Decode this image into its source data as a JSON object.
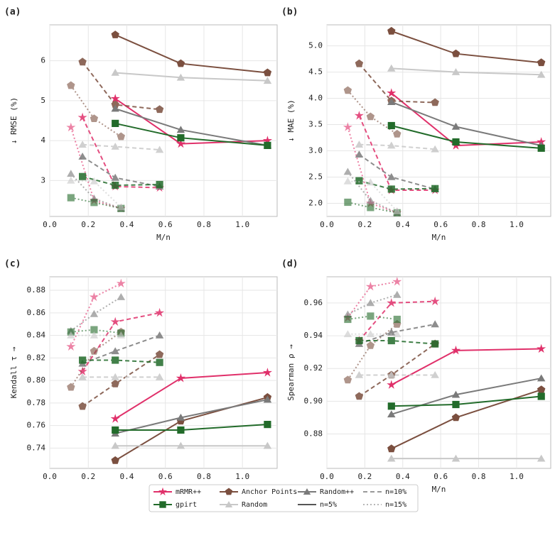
{
  "chart_data": [
    {
      "type": "line",
      "title": "(a)",
      "xlabel": "M/n",
      "ylabel": "↓ RMSE (%)",
      "grid": true,
      "xlim": [
        0,
        1.18
      ],
      "xticks": [
        {
          "value": 0,
          "label": "0.0"
        },
        0.2,
        0.4,
        0.6,
        0.8,
        {
          "value": 1,
          "label": "1.0"
        }
      ],
      "ylim": [
        2.1,
        6.9
      ],
      "yticks": [
        3,
        4,
        5,
        6
      ],
      "series": [
        {
          "method": "mRMR++",
          "style": "n=5%",
          "x": [
            0.34,
            0.68,
            1.13
          ],
          "values": [
            5.05,
            3.92,
            4.0
          ]
        },
        {
          "method": "mRMR++",
          "style": "n=10%",
          "x": [
            0.17,
            0.34,
            0.57
          ],
          "values": [
            4.58,
            2.85,
            2.82
          ]
        },
        {
          "method": "mRMR++",
          "style": "n=15%",
          "x": [
            0.11,
            0.23,
            0.37
          ],
          "values": [
            4.33,
            2.5,
            2.3
          ]
        },
        {
          "method": "Anchor Points",
          "style": "n=5%",
          "x": [
            0.34,
            0.68,
            1.13
          ],
          "values": [
            6.65,
            5.93,
            5.7
          ]
        },
        {
          "method": "Anchor Points",
          "style": "n=10%",
          "x": [
            0.17,
            0.34,
            0.57
          ],
          "values": [
            5.97,
            4.9,
            4.78
          ]
        },
        {
          "method": "Anchor Points",
          "style": "n=15%",
          "x": [
            0.11,
            0.23,
            0.37
          ],
          "values": [
            5.38,
            4.55,
            4.1
          ]
        },
        {
          "method": "Random++",
          "style": "n=5%",
          "x": [
            0.34,
            0.68,
            1.13
          ],
          "values": [
            4.8,
            4.27,
            3.88
          ]
        },
        {
          "method": "Random++",
          "style": "n=10%",
          "x": [
            0.17,
            0.34,
            0.57
          ],
          "values": [
            3.6,
            3.07,
            2.85
          ]
        },
        {
          "method": "Random++",
          "style": "n=15%",
          "x": [
            0.11,
            0.23,
            0.37
          ],
          "values": [
            3.17,
            2.55,
            2.3
          ]
        },
        {
          "method": "gpirt",
          "style": "n=5%",
          "x": [
            0.34,
            0.68,
            1.13
          ],
          "values": [
            4.43,
            4.07,
            3.88
          ]
        },
        {
          "method": "gpirt",
          "style": "n=10%",
          "x": [
            0.17,
            0.34,
            0.57
          ],
          "values": [
            3.1,
            2.88,
            2.9
          ]
        },
        {
          "method": "gpirt",
          "style": "n=15%",
          "x": [
            0.11,
            0.23,
            0.37
          ],
          "values": [
            2.57,
            2.45,
            2.3
          ]
        },
        {
          "method": "Random",
          "style": "n=5%",
          "x": [
            0.34,
            0.68,
            1.13
          ],
          "values": [
            5.7,
            5.58,
            5.5
          ]
        },
        {
          "method": "Random",
          "style": "n=10%",
          "x": [
            0.17,
            0.34,
            0.57
          ],
          "values": [
            3.9,
            3.85,
            3.77
          ]
        },
        {
          "method": "Random",
          "style": "n=15%",
          "x": [
            0.11,
            0.23,
            0.37
          ],
          "values": [
            3.0,
            2.98,
            2.33
          ]
        }
      ]
    },
    {
      "type": "line",
      "title": "(b)",
      "xlabel": "M/n",
      "ylabel": "↓ MAE (%)",
      "grid": true,
      "xlim": [
        0,
        1.18
      ],
      "xticks": [
        {
          "value": 0,
          "label": "0.0"
        },
        0.2,
        0.4,
        0.6,
        0.8,
        {
          "value": 1,
          "label": "1.0"
        }
      ],
      "ylim": [
        1.75,
        5.4
      ],
      "yticks": [
        {
          "value": 2,
          "label": "2.0"
        },
        2.5,
        {
          "value": 3,
          "label": "3.0"
        },
        3.5,
        {
          "value": 4,
          "label": "4.0"
        },
        4.5,
        {
          "value": 5,
          "label": "5.0"
        }
      ],
      "series": [
        {
          "method": "mRMR++",
          "style": "n=5%",
          "x": [
            0.34,
            0.68,
            1.13
          ],
          "values": [
            4.1,
            3.1,
            3.17
          ]
        },
        {
          "method": "mRMR++",
          "style": "n=10%",
          "x": [
            0.17,
            0.34,
            0.57
          ],
          "values": [
            3.67,
            2.25,
            2.25
          ]
        },
        {
          "method": "mRMR++",
          "style": "n=15%",
          "x": [
            0.11,
            0.23,
            0.37
          ],
          "values": [
            3.45,
            2.0,
            1.82
          ]
        },
        {
          "method": "Anchor Points",
          "style": "n=5%",
          "x": [
            0.34,
            0.68,
            1.13
          ],
          "values": [
            5.28,
            4.85,
            4.68
          ]
        },
        {
          "method": "Anchor Points",
          "style": "n=10%",
          "x": [
            0.17,
            0.34,
            0.57
          ],
          "values": [
            4.66,
            3.95,
            3.92
          ]
        },
        {
          "method": "Anchor Points",
          "style": "n=15%",
          "x": [
            0.11,
            0.23,
            0.37
          ],
          "values": [
            4.15,
            3.65,
            3.32
          ]
        },
        {
          "method": "Random++",
          "style": "n=5%",
          "x": [
            0.34,
            0.68,
            1.13
          ],
          "values": [
            3.93,
            3.46,
            3.1
          ]
        },
        {
          "method": "Random++",
          "style": "n=10%",
          "x": [
            0.17,
            0.34,
            0.57
          ],
          "values": [
            2.93,
            2.5,
            2.27
          ]
        },
        {
          "method": "Random++",
          "style": "n=15%",
          "x": [
            0.11,
            0.23,
            0.37
          ],
          "values": [
            2.6,
            2.05,
            1.82
          ]
        },
        {
          "method": "gpirt",
          "style": "n=5%",
          "x": [
            0.34,
            0.68,
            1.13
          ],
          "values": [
            3.48,
            3.17,
            3.05
          ]
        },
        {
          "method": "gpirt",
          "style": "n=10%",
          "x": [
            0.17,
            0.34,
            0.57
          ],
          "values": [
            2.43,
            2.27,
            2.28
          ]
        },
        {
          "method": "gpirt",
          "style": "n=15%",
          "x": [
            0.11,
            0.23,
            0.37
          ],
          "values": [
            2.02,
            1.92,
            1.82
          ]
        },
        {
          "method": "Random",
          "style": "n=5%",
          "x": [
            0.34,
            0.68,
            1.13
          ],
          "values": [
            4.57,
            4.5,
            4.45
          ]
        },
        {
          "method": "Random",
          "style": "n=10%",
          "x": [
            0.17,
            0.34,
            0.57
          ],
          "values": [
            3.12,
            3.1,
            3.03
          ]
        },
        {
          "method": "Random",
          "style": "n=15%",
          "x": [
            0.11,
            0.23,
            0.37
          ],
          "values": [
            2.42,
            2.4,
            1.85
          ]
        }
      ]
    },
    {
      "type": "line",
      "title": "(c)",
      "xlabel": "M/n",
      "ylabel": "Kendall τ →",
      "grid": true,
      "xlim": [
        0,
        1.18
      ],
      "xticks": [
        {
          "value": 0,
          "label": "0.0"
        },
        0.2,
        0.4,
        0.6,
        0.8,
        {
          "value": 1,
          "label": "1.0"
        }
      ],
      "ylim": [
        0.722,
        0.892
      ],
      "yticks": [
        0.74,
        0.76,
        0.78,
        {
          "value": 0.8,
          "label": "0.80"
        },
        0.82,
        0.84,
        0.86,
        0.88
      ],
      "series": [
        {
          "method": "mRMR++",
          "style": "n=5%",
          "x": [
            0.34,
            0.68,
            1.13
          ],
          "values": [
            0.766,
            0.802,
            0.807
          ]
        },
        {
          "method": "mRMR++",
          "style": "n=10%",
          "x": [
            0.17,
            0.34,
            0.57
          ],
          "values": [
            0.808,
            0.852,
            0.86
          ]
        },
        {
          "method": "mRMR++",
          "style": "n=15%",
          "x": [
            0.11,
            0.23,
            0.37
          ],
          "values": [
            0.83,
            0.874,
            0.886
          ]
        },
        {
          "method": "Anchor Points",
          "style": "n=5%",
          "x": [
            0.34,
            0.68,
            1.13
          ],
          "values": [
            0.729,
            0.764,
            0.785
          ]
        },
        {
          "method": "Anchor Points",
          "style": "n=10%",
          "x": [
            0.17,
            0.34,
            0.57
          ],
          "values": [
            0.777,
            0.797,
            0.823
          ]
        },
        {
          "method": "Anchor Points",
          "style": "n=15%",
          "x": [
            0.11,
            0.23,
            0.37
          ],
          "values": [
            0.794,
            0.826,
            0.843
          ]
        },
        {
          "method": "Random++",
          "style": "n=5%",
          "x": [
            0.34,
            0.68,
            1.13
          ],
          "values": [
            0.753,
            0.767,
            0.783
          ]
        },
        {
          "method": "Random++",
          "style": "n=10%",
          "x": [
            0.17,
            0.34,
            0.57
          ],
          "values": [
            0.815,
            0.826,
            0.84
          ]
        },
        {
          "method": "Random++",
          "style": "n=15%",
          "x": [
            0.11,
            0.23,
            0.37
          ],
          "values": [
            0.844,
            0.859,
            0.874
          ]
        },
        {
          "method": "gpirt",
          "style": "n=5%",
          "x": [
            0.34,
            0.68,
            1.13
          ],
          "values": [
            0.756,
            0.756,
            0.761
          ]
        },
        {
          "method": "gpirt",
          "style": "n=10%",
          "x": [
            0.17,
            0.34,
            0.57
          ],
          "values": [
            0.818,
            0.818,
            0.816
          ]
        },
        {
          "method": "gpirt",
          "style": "n=15%",
          "x": [
            0.11,
            0.23,
            0.37
          ],
          "values": [
            0.843,
            0.845,
            0.842
          ]
        },
        {
          "method": "Random",
          "style": "n=5%",
          "x": [
            0.34,
            0.68,
            1.13
          ],
          "values": [
            0.742,
            0.742,
            0.742
          ]
        },
        {
          "method": "Random",
          "style": "n=10%",
          "x": [
            0.17,
            0.34,
            0.57
          ],
          "values": [
            0.803,
            0.803,
            0.803
          ]
        },
        {
          "method": "Random",
          "style": "n=15%",
          "x": [
            0.11,
            0.23,
            0.37
          ],
          "values": [
            0.84,
            0.84,
            0.84
          ]
        }
      ]
    },
    {
      "type": "line",
      "title": "(d)",
      "xlabel": "M/n",
      "ylabel": "Spearman ρ →",
      "grid": true,
      "xlim": [
        0,
        1.18
      ],
      "xticks": [
        {
          "value": 0,
          "label": "0.0"
        },
        0.2,
        0.4,
        0.6,
        0.8,
        {
          "value": 1,
          "label": "1.0"
        }
      ],
      "ylim": [
        0.859,
        0.976
      ],
      "yticks": [
        0.88,
        {
          "value": 0.9,
          "label": "0.90"
        },
        0.92,
        0.94,
        0.96
      ],
      "series": [
        {
          "method": "mRMR++",
          "style": "n=5%",
          "x": [
            0.34,
            0.68,
            1.13
          ],
          "values": [
            0.91,
            0.931,
            0.932
          ]
        },
        {
          "method": "mRMR++",
          "style": "n=10%",
          "x": [
            0.17,
            0.34,
            0.57
          ],
          "values": [
            0.937,
            0.96,
            0.961
          ]
        },
        {
          "method": "mRMR++",
          "style": "n=15%",
          "x": [
            0.11,
            0.23,
            0.37
          ],
          "values": [
            0.951,
            0.97,
            0.973
          ]
        },
        {
          "method": "Anchor Points",
          "style": "n=5%",
          "x": [
            0.34,
            0.68,
            1.13
          ],
          "values": [
            0.871,
            0.89,
            0.907
          ]
        },
        {
          "method": "Anchor Points",
          "style": "n=10%",
          "x": [
            0.17,
            0.34,
            0.57
          ],
          "values": [
            0.903,
            0.916,
            0.935
          ]
        },
        {
          "method": "Anchor Points",
          "style": "n=15%",
          "x": [
            0.11,
            0.23,
            0.37
          ],
          "values": [
            0.913,
            0.934,
            0.947
          ]
        },
        {
          "method": "Random++",
          "style": "n=5%",
          "x": [
            0.34,
            0.68,
            1.13
          ],
          "values": [
            0.892,
            0.904,
            0.914
          ]
        },
        {
          "method": "Random++",
          "style": "n=10%",
          "x": [
            0.17,
            0.34,
            0.57
          ],
          "values": [
            0.935,
            0.942,
            0.947
          ]
        },
        {
          "method": "Random++",
          "style": "n=15%",
          "x": [
            0.11,
            0.23,
            0.37
          ],
          "values": [
            0.953,
            0.96,
            0.965
          ]
        },
        {
          "method": "gpirt",
          "style": "n=5%",
          "x": [
            0.34,
            0.68,
            1.13
          ],
          "values": [
            0.897,
            0.898,
            0.903
          ]
        },
        {
          "method": "gpirt",
          "style": "n=10%",
          "x": [
            0.17,
            0.34,
            0.57
          ],
          "values": [
            0.937,
            0.937,
            0.935
          ]
        },
        {
          "method": "gpirt",
          "style": "n=15%",
          "x": [
            0.11,
            0.23,
            0.37
          ],
          "values": [
            0.95,
            0.952,
            0.95
          ]
        },
        {
          "method": "Random",
          "style": "n=5%",
          "x": [
            0.34,
            0.68,
            1.13
          ],
          "values": [
            0.865,
            0.865,
            0.865
          ]
        },
        {
          "method": "Random",
          "style": "n=10%",
          "x": [
            0.17,
            0.34,
            0.57
          ],
          "values": [
            0.916,
            0.916,
            0.916
          ]
        },
        {
          "method": "Random",
          "style": "n=15%",
          "x": [
            0.11,
            0.23,
            0.37
          ],
          "values": [
            0.941,
            0.941,
            0.941
          ]
        }
      ]
    }
  ],
  "legend": {
    "items": [
      {
        "name": "mRMR++",
        "color": "#e0306a",
        "marker": "star"
      },
      {
        "name": "Anchor Points",
        "color": "#7b4f3f",
        "marker": "pentagon"
      },
      {
        "name": "Random++",
        "color": "#7a7a7a",
        "marker": "triangle"
      },
      {
        "name": "n=10%",
        "color": "#888888",
        "dash": "6,4",
        "alpha": 0.85
      },
      {
        "name": "gpirt",
        "color": "#226b2a",
        "marker": "square"
      },
      {
        "name": "Random",
        "color": "#c8c8c8",
        "marker": "triangle"
      },
      {
        "name": "n=5%",
        "color": "#555555",
        "dash": "none",
        "alpha": 1
      },
      {
        "name": "n=15%",
        "color": "#888888",
        "dash": "2,3",
        "alpha": 0.6
      }
    ]
  }
}
